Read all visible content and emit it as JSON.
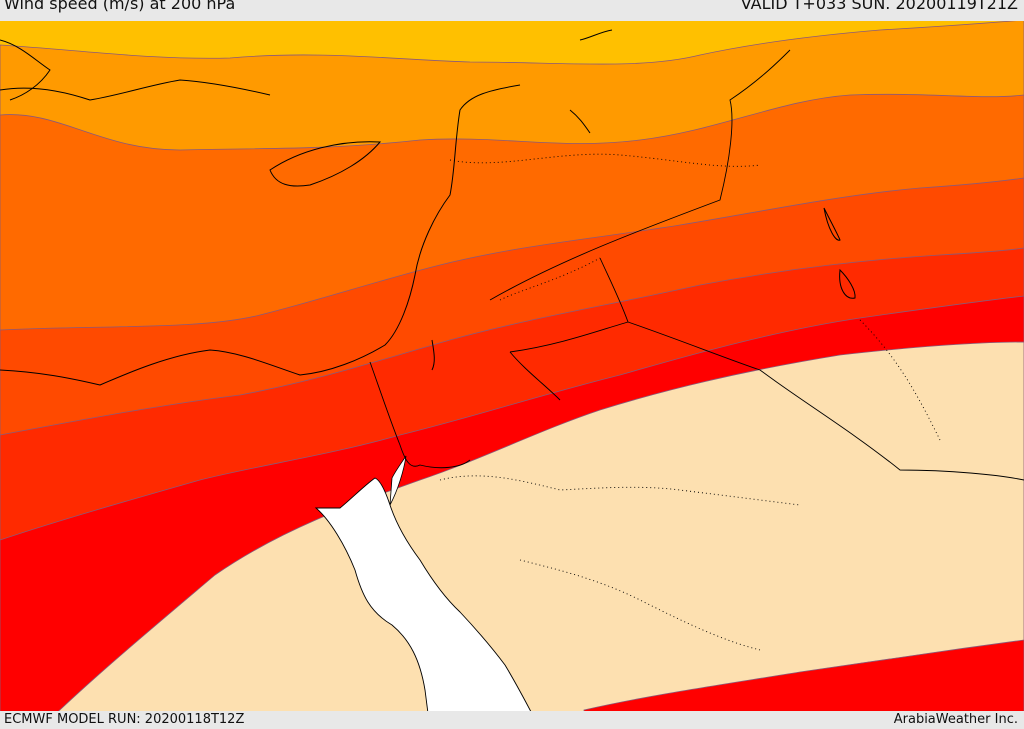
{
  "header": {
    "title": "Wind speed (m/s) at 200 hPa",
    "valid": "VALID T+033 SUN. 20200119T21Z"
  },
  "footer": {
    "model_run": "ECMWF MODEL RUN: 20200118T12Z",
    "credit": "ArabiaWeather Inc."
  },
  "palette": {
    "band_1": "#ffc000",
    "band_2": "#ff9a00",
    "band_3": "#ff6a00",
    "band_4": "#ff4a00",
    "band_5": "#ff2a00",
    "band_6": "#ff0000",
    "calm": "#fde0b0",
    "sea": "#ffffff"
  }
}
